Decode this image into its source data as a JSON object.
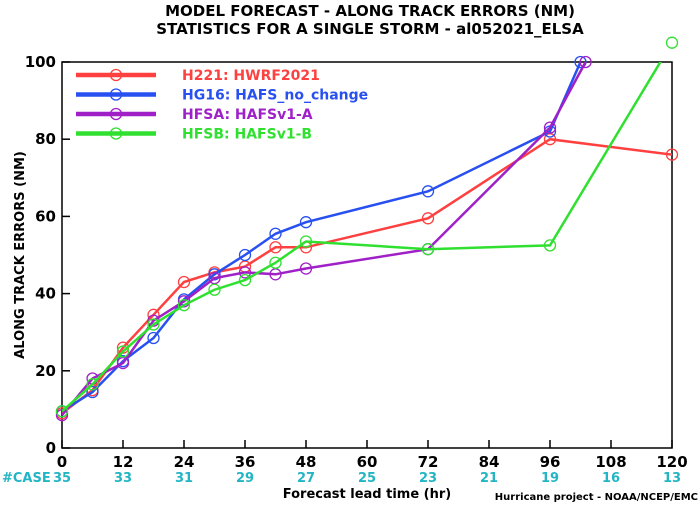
{
  "chart_data": {
    "type": "line",
    "title": "MODEL FORECAST - ALONG TRACK ERRORS (NM)",
    "subtitle": "STATISTICS FOR A SINGLE STORM - al052021_ELSA",
    "xlabel": "Forecast lead time (hr)",
    "ylabel": "ALONG TRACK ERRORS (NM)",
    "xlim": [
      0,
      120
    ],
    "ylim": [
      0,
      100
    ],
    "x_ticks": [
      0,
      12,
      24,
      36,
      48,
      60,
      72,
      84,
      96,
      108,
      120
    ],
    "y_ticks": [
      0,
      20,
      40,
      60,
      80,
      100
    ],
    "case_label": "#CASE",
    "cases": [
      "35",
      "33",
      "31",
      "29",
      "27",
      "25",
      "23",
      "21",
      "19",
      "16",
      "13"
    ],
    "credit": "Hurricane project - NOAA/NCEP/EMC",
    "legend_position": "top-left",
    "series": [
      {
        "name": "H221: HWRF2021",
        "color": "#ff4040",
        "x": [
          0,
          6,
          12,
          18,
          24,
          30,
          36,
          42,
          48,
          72,
          96,
          120
        ],
        "y": [
          9,
          15,
          26,
          34.5,
          43,
          45.5,
          47,
          52,
          52,
          59.5,
          80,
          76
        ]
      },
      {
        "name": "HG16: HAFS_no_change",
        "color": "#2850f0",
        "x": [
          0,
          6,
          12,
          18,
          24,
          30,
          36,
          42,
          48,
          72,
          96,
          102
        ],
        "y": [
          9.5,
          14.5,
          22.5,
          28.5,
          38.5,
          45,
          50,
          55.5,
          58.5,
          66.5,
          82,
          100
        ]
      },
      {
        "name": "HFSA: HAFSv1-A",
        "color": "#a020c8",
        "x": [
          0,
          6,
          12,
          18,
          24,
          30,
          36,
          42,
          48,
          72,
          96,
          103
        ],
        "y": [
          8.5,
          18,
          22,
          33,
          38,
          44,
          45.5,
          45,
          46.5,
          51.5,
          83,
          100
        ]
      },
      {
        "name": "HFSB: HAFSv1-B",
        "color": "#30e030",
        "x": [
          0,
          6,
          12,
          18,
          24,
          30,
          36,
          42,
          48,
          72,
          96,
          120
        ],
        "y": [
          9.5,
          16.5,
          25,
          32,
          37,
          41,
          43.5,
          48,
          53.5,
          51.5,
          52.5,
          105
        ]
      }
    ]
  }
}
